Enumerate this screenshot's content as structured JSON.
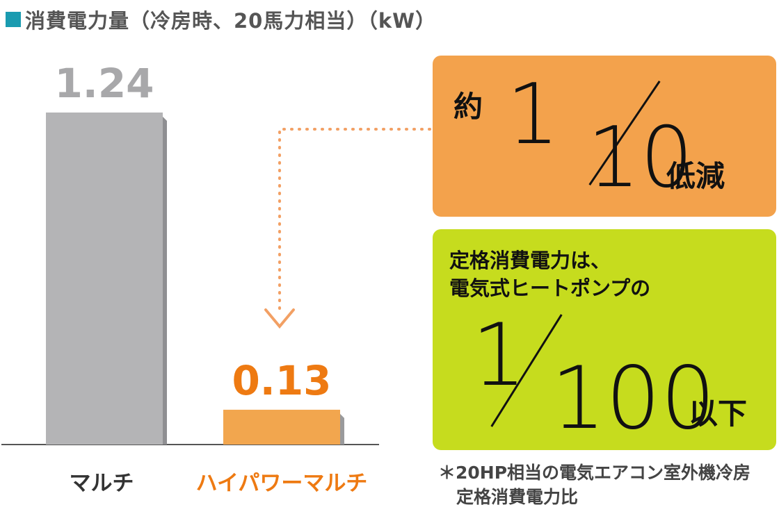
{
  "title": "消費電力量（冷房時、20馬力相当）（kW）",
  "colors": {
    "title_square": "#1a9bb0",
    "gray_bar": "#b4b4b6",
    "gray_bar_shade": "#8f8f92",
    "gray_text": "#a8a8aa",
    "orange_bar": "#f2a64e",
    "orange_bar_shade": "#9a9a9c",
    "orange_text": "#ee7a12",
    "orange_box": "#f3a24c",
    "green_box": "#c6dc1e",
    "dotted_arrow": "#f2a064",
    "baseline": "#555555"
  },
  "chart_data": {
    "type": "bar",
    "title": "消費電力量（冷房時、20馬力相当）（kW）",
    "categories": [
      "マルチ",
      "ハイパワーマルチ"
    ],
    "values": [
      1.24,
      0.13
    ],
    "value_labels": [
      "1.24",
      "0.13"
    ],
    "ylim": [
      0,
      1.24
    ],
    "grid": false
  },
  "callout_orange": {
    "prefix": "約",
    "numerator": "1",
    "denominator": "10",
    "suffix": "低減"
  },
  "callout_green": {
    "line1": "定格消費電力は、",
    "line2": "電気式ヒートポンプの",
    "numerator": "1",
    "denominator": "100",
    "suffix": "以下"
  },
  "footnote": {
    "line1": "＊20HP相当の電気エアコン室外機冷房",
    "line2": "定格消費電力比"
  }
}
